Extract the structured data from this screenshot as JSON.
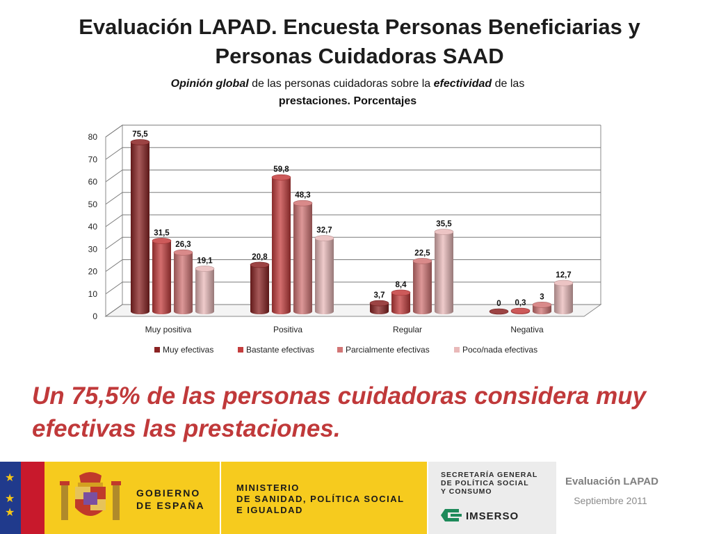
{
  "slide": {
    "title_line1": "Evaluación LAPAD.  Encuesta Personas Beneficiarias y",
    "title_line2": "Personas  Cuidadoras SAAD",
    "chart_title_part1": "Opinión global",
    "chart_title_part2": " de las personas cuidadoras sobre la ",
    "chart_title_part3": "efectividad",
    "chart_title_part4": " de las",
    "chart_title_line2": "prestaciones. Porcentajes",
    "conclusion_line1": "Un 75,5% de las personas cuidadoras considera  muy",
    "conclusion_line2": "efectivas las prestaciones.",
    "footer_eval": "Evaluación LAPAD",
    "footer_date": "Septiembre 2011"
  },
  "logos": {
    "gobierno_line1": "GOBIERNO",
    "gobierno_line2": "DE ESPAÑA",
    "ministerio_line1": "MINISTERIO",
    "ministerio_line2": "DE SANIDAD, POLÍTICA SOCIAL",
    "ministerio_line3": "E IGUALDAD",
    "secretaria_line1": "SECRETARÍA GENERAL",
    "secretaria_line2": "DE POLÍTICA SOCIAL",
    "secretaria_line3": "Y CONSUMO",
    "imserso": "IMSERSO"
  },
  "chart_data": {
    "type": "bar",
    "title": "Opinión global de las personas cuidadoras sobre la efectividad de las prestaciones. Porcentajes",
    "categories": [
      "Muy positiva",
      "Positiva",
      "Regular",
      "Negativa"
    ],
    "series": [
      {
        "name": "Muy efectivas",
        "values": [
          75.5,
          20.8,
          3.7,
          0
        ],
        "labels": [
          "75,5",
          "20,8",
          "3,7",
          "0"
        ],
        "color": "#8b2323"
      },
      {
        "name": "Bastante efectivas",
        "values": [
          31.5,
          59.8,
          8.4,
          0.3
        ],
        "labels": [
          "31,5",
          "59,8",
          "8,4",
          "0,3"
        ],
        "color": "#c43d3d"
      },
      {
        "name": "Parcialmente efectivas",
        "values": [
          26.3,
          48.3,
          22.5,
          3
        ],
        "labels": [
          "26,3",
          "48,3",
          "22,5",
          "3"
        ],
        "color": "#d27575"
      },
      {
        "name": "Poco/nada efectivas",
        "values": [
          19.1,
          32.7,
          35.5,
          12.7
        ],
        "labels": [
          "19,1",
          "32,7",
          "35,5",
          "12,7"
        ],
        "color": "#e9b9b9"
      }
    ],
    "ylim": [
      0,
      80
    ],
    "yticks": [
      0,
      10,
      20,
      30,
      40,
      50,
      60,
      70,
      80
    ],
    "xlabel": "",
    "ylabel": "",
    "grid": true,
    "legend_position": "bottom"
  }
}
